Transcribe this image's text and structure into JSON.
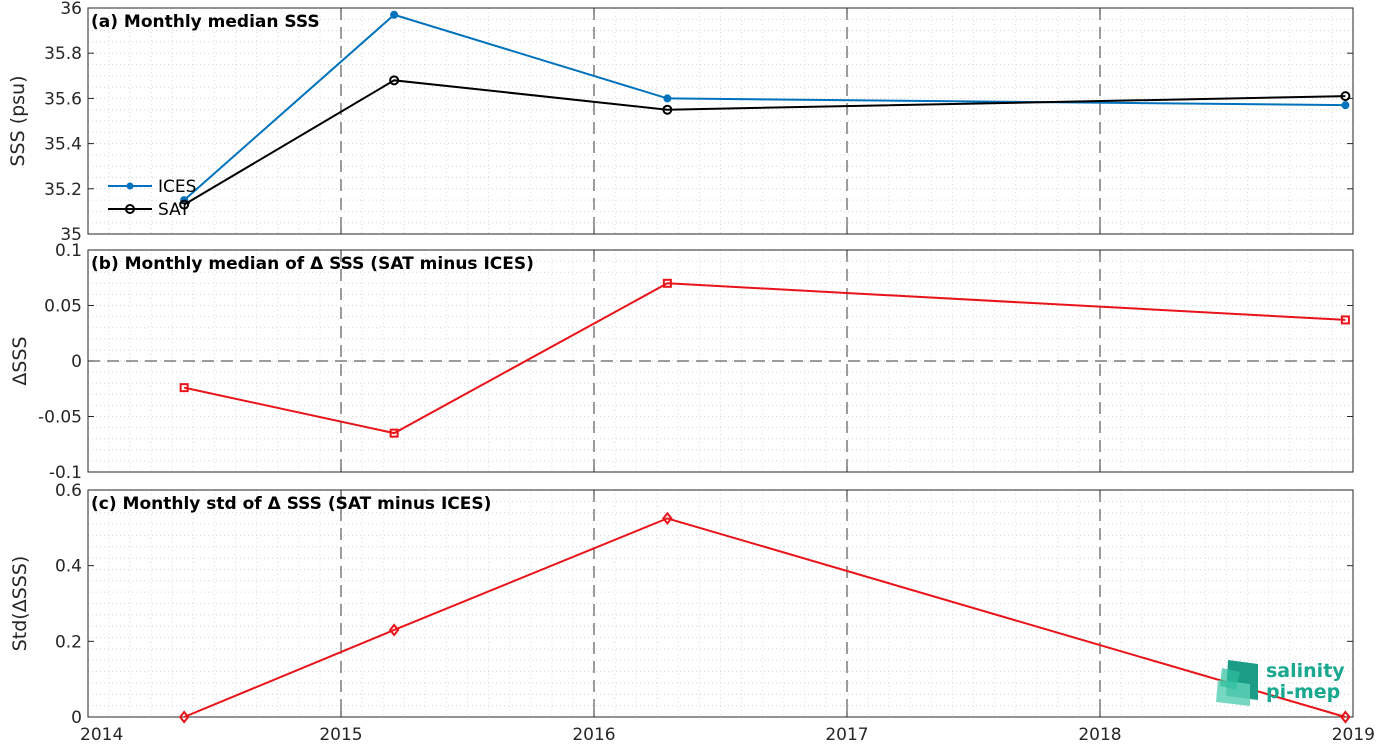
{
  "colors": {
    "ices": "#0072BD",
    "sat": "#000000",
    "delta": "#E8141A",
    "logo": "#19A78F"
  },
  "logo": {
    "line1": "salinity",
    "line2": "pi-mep"
  },
  "x_axis": {
    "ticks": [
      "2014",
      "2015",
      "2016",
      "2017",
      "2018",
      "2019"
    ]
  },
  "chart_data": [
    {
      "type": "line",
      "title": "(a) Monthly median SSS",
      "ylabel": "SSS (psu)",
      "xlim": [
        2014,
        2019
      ],
      "ylim": [
        35,
        36
      ],
      "yticks": [
        "35",
        "35.2",
        "35.4",
        "35.6",
        "35.8",
        "36"
      ],
      "xticks": [
        "2014",
        "2015",
        "2016",
        "2017",
        "2018",
        "2019"
      ],
      "legend": "lower-left",
      "grid": true,
      "x": [
        2014.38,
        2015.21,
        2016.29,
        2018.97
      ],
      "series": [
        {
          "name": "ICES",
          "marker": "filled-dot",
          "values": [
            35.15,
            35.97,
            35.6,
            35.57
          ]
        },
        {
          "name": "SAT",
          "marker": "circle",
          "values": [
            35.13,
            35.68,
            35.55,
            35.61
          ]
        }
      ]
    },
    {
      "type": "line",
      "title": "(b) Monthly median of Δ SSS (SAT minus ICES)",
      "ylabel": "ΔSSS",
      "xlim": [
        2014,
        2019
      ],
      "ylim": [
        -0.1,
        0.1
      ],
      "yticks": [
        "-0.1",
        "-0.05",
        "0",
        "0.05",
        "0.1"
      ],
      "xticks": [
        "2014",
        "2015",
        "2016",
        "2017",
        "2018",
        "2019"
      ],
      "grid": true,
      "reference_line": 0,
      "x": [
        2014.38,
        2015.21,
        2016.29,
        2018.97
      ],
      "series": [
        {
          "marker": "square",
          "values": [
            -0.024,
            -0.065,
            0.07,
            0.037
          ]
        }
      ]
    },
    {
      "type": "line",
      "title": "(c) Monthly std of Δ SSS (SAT minus ICES)",
      "ylabel": "Std(ΔSSS)",
      "xlim": [
        2014,
        2019
      ],
      "ylim": [
        0,
        0.6
      ],
      "yticks": [
        "0",
        "0.2",
        "0.4",
        "0.6"
      ],
      "xticks": [
        "2014",
        "2015",
        "2016",
        "2017",
        "2018",
        "2019"
      ],
      "grid": true,
      "x": [
        2014.38,
        2015.21,
        2016.29,
        2018.97
      ],
      "series": [
        {
          "marker": "diamond",
          "values": [
            0.0,
            0.23,
            0.525,
            0.0
          ]
        }
      ]
    }
  ]
}
